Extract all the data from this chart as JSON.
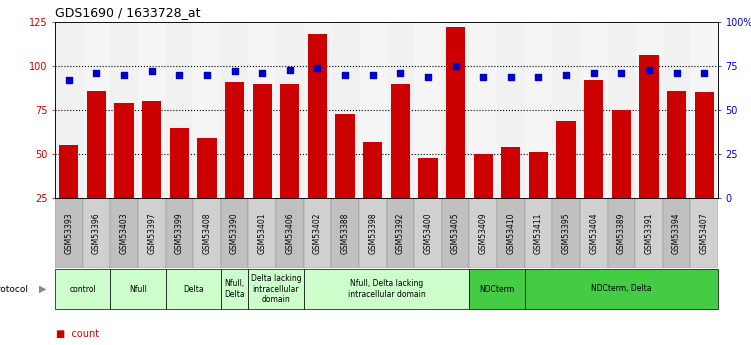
{
  "title": "GDS1690 / 1633728_at",
  "samples": [
    "GSM53393",
    "GSM53396",
    "GSM53403",
    "GSM53397",
    "GSM53399",
    "GSM53408",
    "GSM53390",
    "GSM53401",
    "GSM53406",
    "GSM53402",
    "GSM53388",
    "GSM53398",
    "GSM53392",
    "GSM53400",
    "GSM53405",
    "GSM53409",
    "GSM53410",
    "GSM53411",
    "GSM53395",
    "GSM53404",
    "GSM53389",
    "GSM53391",
    "GSM53394",
    "GSM53407"
  ],
  "counts": [
    55,
    86,
    79,
    80,
    65,
    59,
    91,
    90,
    90,
    118,
    73,
    57,
    90,
    48,
    122,
    50,
    54,
    51,
    69,
    92,
    75,
    106,
    86,
    85
  ],
  "percentiles": [
    67,
    71,
    70,
    72,
    70,
    70,
    72,
    71,
    73,
    74,
    70,
    70,
    71,
    69,
    75,
    69,
    69,
    69,
    70,
    71,
    71,
    73,
    71,
    71
  ],
  "bar_color": "#cc0000",
  "dot_color": "#0000cc",
  "ylim_left": [
    25,
    125
  ],
  "ylim_right": [
    0,
    100
  ],
  "yticks_left": [
    25,
    50,
    75,
    100,
    125
  ],
  "yticks_right": [
    0,
    25,
    50,
    75,
    100
  ],
  "ytick_labels_right": [
    "0",
    "25",
    "50",
    "75",
    "100%"
  ],
  "grid_values": [
    50,
    75,
    100
  ],
  "protocol_groups": [
    {
      "label": "control",
      "start": 0,
      "end": 2,
      "color": "#ccffcc"
    },
    {
      "label": "Nfull",
      "start": 2,
      "end": 4,
      "color": "#ccffcc"
    },
    {
      "label": "Delta",
      "start": 4,
      "end": 6,
      "color": "#ccffcc"
    },
    {
      "label": "Nfull,\nDelta",
      "start": 6,
      "end": 7,
      "color": "#ccffcc"
    },
    {
      "label": "Delta lacking\nintracellular\ndomain",
      "start": 7,
      "end": 9,
      "color": "#ccffcc"
    },
    {
      "label": "Nfull, Delta lacking\nintracellular domain",
      "start": 9,
      "end": 15,
      "color": "#ccffcc"
    },
    {
      "label": "NDCterm",
      "start": 15,
      "end": 17,
      "color": "#44cc44"
    },
    {
      "label": "NDCterm, Delta",
      "start": 17,
      "end": 24,
      "color": "#44cc44"
    }
  ],
  "col_colors": [
    "#c8c8c8",
    "#d8d8d8",
    "#c8c8c8",
    "#d8d8d8",
    "#c8c8c8",
    "#d8d8d8",
    "#c8c8c8",
    "#d8d8d8",
    "#c8c8c8",
    "#d8d8d8",
    "#c8c8c8",
    "#d8d8d8",
    "#c8c8c8",
    "#d8d8d8",
    "#c8c8c8",
    "#d8d8d8",
    "#c8c8c8",
    "#d8d8d8",
    "#c8c8c8",
    "#d8d8d8",
    "#c8c8c8",
    "#d8d8d8",
    "#c8c8c8",
    "#d8d8d8"
  ]
}
